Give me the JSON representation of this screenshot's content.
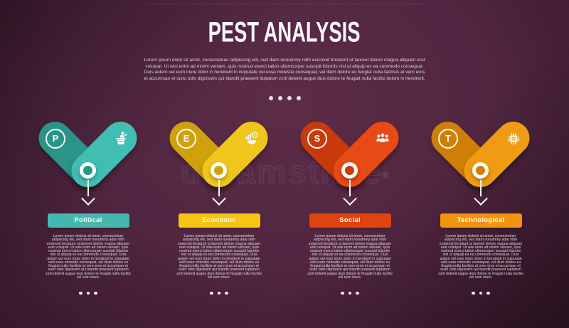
{
  "decor": {
    "top_text": "lorem ipsum dolor sit amet   consectetuer adipiscing elit sed diam   nonummy nibh euismod tincidunt   ut laoreet dolore magna",
    "watermark": "dreamstime",
    "watermark_reg": "®"
  },
  "header": {
    "title": "PEST ANALYSIS",
    "description": "Lorem ipsum dolor sit amet, consectetuer adipiscing elit, sed diam nonummy nibh euismod tincidunt ut laoreet dolore magna aliquam erat volutpat. Ut wisi enim ad minim veniam, quis nostrud exerci tation ullamcorper suscipit lobortis nisl ut aliquip ex ea commodo consequat. Duis autem vel eum iriure dolor in hendrerit in vulputate vel esse molestie consequat, vel illum dolore eu feugiat nulla facilisis at vero eros et accumsan et iusto odio dignissim qui blandit praesent luptatum zzril delenit augue duis dolore te feugait nulla facilisi dolore in hendrerit.",
    "dots_count": 4
  },
  "column_dots_count": 3,
  "columns": [
    {
      "letter": "P",
      "label": "Political",
      "icon": "podium-speaker-icon",
      "color_dark": "#2a9488",
      "color_main": "#41bdb2",
      "color_label": "#44b8ae",
      "body": "Lorem ipsum dolorsi sit amet, consectetuer adipiscing elit, sed diam nonummy adar nibh euismod tincidunt ut laoreet dolore magna aliquam erat volutpat. Ut wisi enim ad minim veniam, quis nostrud exerci tation ullamcorper suscipit lobortis nisl ut aliquip ex ea commodo consequat. Duis autem vel eum iriure dolor in hendrerit in vulputate velit esse molestie consequat, vel illum dolore eu feugiat nulla facilisis at vero eros et accumsan et iusto odio dignissim qui blandit praesent luptatum zzril delenit augue duis dolore te feugait nulla facilisi vel eum iriure."
    },
    {
      "letter": "E",
      "label": "Economic",
      "icon": "economy-growth-icon",
      "color_dark": "#cfa10c",
      "color_main": "#f0c51c",
      "color_label": "#f6c412",
      "body": "Lorem ipsum dolorsi sit amet, consectetuer adipiscing elit, sed diam nonummy adar nibh euismod tincidunt ut laoreet dolore magna aliquam erat volutpat. Ut wisi enim ad minim veniam, quis nostrud exerci tation ullamcorper suscipit lobortis nisl ut aliquip ex ea commodo consequat. Duis autem vel eum iriure dolor in hendrerit in vulputate velit esse molestie consequat, vel illum dolore eu feugiat nulla facilisis at vero eros et accumsan et iusto odio dignissim qui blandit praesent luptatum zzril delenit augue duis dolore te feugait nulla facilisi vel eum iriure."
    },
    {
      "letter": "S",
      "label": "Social",
      "icon": "people-group-icon",
      "color_dark": "#c93a0b",
      "color_main": "#e74a14",
      "color_label": "#e04310",
      "body": "Lorem ipsum dolorsi sit amet, consectetuer adipiscing elit, sed diam nonummy adar nibh euismod tincidunt ut laoreet dolore magna aliquam erat volutpat. Ut wisi enim ad minim veniam, quis nostrud exerci tation ullamcorper suscipit lobortis nisl ut aliquip ex ea commodo consequat. Duis autem vel eum iriure dolor in hendrerit in vulputate velit esse molestie consequat, vel illum dolore eu feugiat nulla facilisis at vero eros et accumsan et iusto odio dignissim qui blandit praesent luptatum zzril delenit augue duis dolore te feugait nulla facilisi vel eum iriure."
    },
    {
      "letter": "T",
      "label": "Technological",
      "icon": "cpu-chip-icon",
      "color_dark": "#d07f06",
      "color_main": "#ef9c14",
      "color_label": "#f0930e",
      "body": "Lorem ipsum dolorsi sit amet, consectetuer adipiscing elit, sed diam nonummy adar nibh euismod tincidunt ut laoreet dolore magna aliquam erat volutpat. Ut wisi enim ad minim veniam, quis nostrud exerci tation ullamcorper suscipit lobortis nisl ut aliquip ex ea commodo consequat. Duis autem vel eum iriure dolor in hendrerit in vulputate velit esse molestie consequat, vel illum dolore eu feugiat nulla facilisis at vero eros et accumsan et iusto odio dignissim qui blandit praesent luptatum zzril delenit augue duis dolore te feugait nulla facilisi vel eum iriure."
    }
  ]
}
